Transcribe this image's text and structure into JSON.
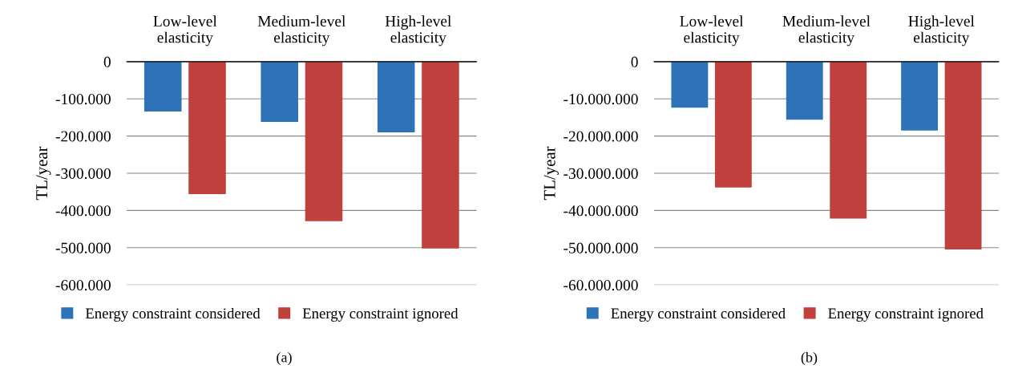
{
  "chart_data": [
    {
      "type": "bar",
      "categories": [
        "Low-level\nelasticity",
        "Medium-level\nelasticity",
        "High-level\nelasticity"
      ],
      "ylabel": "TL/year",
      "series": [
        {
          "name": "Energy constraint considered",
          "color": "#2e72b8",
          "values": [
            -134000,
            -162000,
            -190000
          ]
        },
        {
          "name": "Energy constraint ignored",
          "color": "#c0403d",
          "values": [
            -356000,
            -429000,
            -502000
          ]
        }
      ],
      "ylim": [
        -600000,
        0
      ],
      "yticks": [
        {
          "value": -600000,
          "label": "-600.000"
        },
        {
          "value": -500000,
          "label": "-500.000"
        },
        {
          "value": -400000,
          "label": "-400.000"
        },
        {
          "value": -300000,
          "label": "-300.000"
        },
        {
          "value": -200000,
          "label": "-200.000"
        },
        {
          "value": -100000,
          "label": "-100.000"
        },
        0
      ],
      "grid": "y",
      "legend": "bottom",
      "annotations": [
        "(a)"
      ]
    },
    {
      "type": "bar",
      "categories": [
        "Low-level\nelasticity",
        "Medium-level\nelasticity",
        "High-level\nelasticity"
      ],
      "ylabel": "TL/year",
      "series": [
        {
          "name": "Energy constraint considered",
          "color": "#2e72b8",
          "values": [
            -12400000,
            -15600000,
            -18500000
          ]
        },
        {
          "name": "Energy constraint ignored",
          "color": "#c0403d",
          "values": [
            -33800000,
            -42200000,
            -50500000
          ]
        }
      ],
      "ylim": [
        -60000000,
        0
      ],
      "yticks": [
        {
          "value": -60000000,
          "label": "-60.000.000"
        },
        {
          "value": -50000000,
          "label": "-50.000.000"
        },
        {
          "value": -40000000,
          "label": "-40.000.000"
        },
        {
          "value": -30000000,
          "label": "-30.000.000"
        },
        {
          "value": -20000000,
          "label": "-20.000.000"
        },
        {
          "value": -10000000,
          "label": "-10.000.000"
        },
        0
      ],
      "grid": "y",
      "legend": "bottom",
      "annotations": [
        "(b)"
      ]
    }
  ]
}
